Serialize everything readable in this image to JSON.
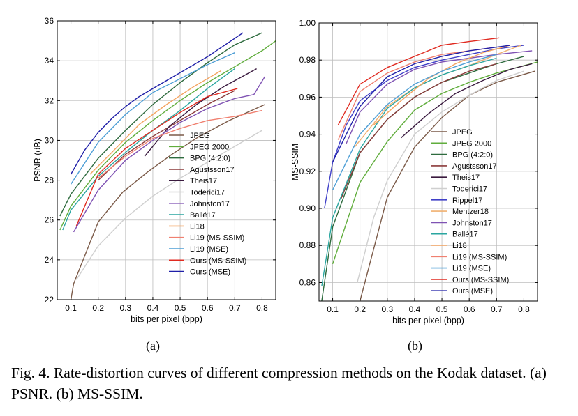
{
  "figure": {
    "caption": "Fig. 4.  Rate-distortion curves of different compression methods on the Kodak dataset. (a) PSNR. (b) MS-SSIM.",
    "sublabel_a": "(a)",
    "sublabel_b": "(b)"
  },
  "chart_data": [
    {
      "id": "psnr",
      "type": "line",
      "xlabel": "bits per pixel (bpp)",
      "ylabel": "PSNR (dB)",
      "xlim": [
        0.05,
        0.85
      ],
      "ylim": [
        22,
        36
      ],
      "xticks": [
        0.1,
        0.2,
        0.3,
        0.4,
        0.5,
        0.6,
        0.7,
        0.8
      ],
      "xticklabels": [
        "0.1",
        "0.2",
        "0.3",
        "0.4",
        "0.5",
        "0.6",
        "0.7",
        "0.8"
      ],
      "yticks": [
        22,
        24,
        26,
        28,
        30,
        32,
        34,
        36
      ],
      "yticklabels": [
        "22",
        "24",
        "26",
        "28",
        "30",
        "32",
        "34",
        "36"
      ],
      "grid": true,
      "legend": "bottom-right",
      "series": [
        {
          "name": "JPEG",
          "color": "#7b5a48",
          "x": [
            0.1,
            0.11,
            0.2,
            0.29,
            0.38,
            0.47,
            0.57,
            0.68,
            0.81
          ],
          "y": [
            22.0,
            22.8,
            25.9,
            27.4,
            28.4,
            29.3,
            30.2,
            31.0,
            31.8
          ]
        },
        {
          "name": "JPEG 2000",
          "color": "#60ad3c",
          "x": [
            0.06,
            0.1,
            0.2,
            0.3,
            0.4,
            0.5,
            0.6,
            0.7,
            0.8,
            0.85
          ],
          "y": [
            25.5,
            26.7,
            28.5,
            29.9,
            31.0,
            32.0,
            32.9,
            33.7,
            34.5,
            35.0
          ]
        },
        {
          "name": "BPG (4:2:0)",
          "color": "#2e6b3e",
          "x": [
            0.06,
            0.1,
            0.2,
            0.3,
            0.4,
            0.5,
            0.6,
            0.7,
            0.8
          ],
          "y": [
            26.2,
            27.3,
            29.1,
            30.5,
            31.8,
            32.9,
            33.9,
            34.8,
            35.4
          ]
        },
        {
          "name": "Agustsson17",
          "color": "#8b3a3a",
          "x": [
            0.2,
            0.3,
            0.4,
            0.5,
            0.6,
            0.7
          ],
          "y": [
            28.0,
            29.3,
            30.2,
            31.0,
            31.8,
            32.5
          ]
        },
        {
          "name": "Theis17",
          "color": "#3a1a3f",
          "x": [
            0.37,
            0.46,
            0.56,
            0.66,
            0.78
          ],
          "y": [
            29.2,
            30.7,
            31.8,
            32.7,
            33.6
          ]
        },
        {
          "name": "Toderici17",
          "color": "#cfcfcf",
          "x": [
            0.12,
            0.2,
            0.3,
            0.4,
            0.5,
            0.6,
            0.7,
            0.8
          ],
          "y": [
            23.0,
            24.7,
            26.1,
            27.2,
            28.1,
            28.9,
            29.7,
            30.5
          ]
        },
        {
          "name": "Johnston17",
          "color": "#7f52b3",
          "x": [
            0.11,
            0.2,
            0.3,
            0.4,
            0.5,
            0.6,
            0.7,
            0.77,
            0.81
          ],
          "y": [
            25.4,
            27.5,
            29.0,
            30.0,
            30.9,
            31.6,
            32.1,
            32.3,
            33.2
          ]
        },
        {
          "name": "Ballé17",
          "color": "#2aa6a0",
          "x": [
            0.07,
            0.1,
            0.2,
            0.3,
            0.4,
            0.5,
            0.6,
            0.7
          ],
          "y": [
            25.5,
            26.5,
            28.2,
            29.4,
            30.5,
            31.5,
            32.6,
            33.6
          ]
        },
        {
          "name": "Li18",
          "color": "#f4a460",
          "x": [
            0.17,
            0.25,
            0.35,
            0.45,
            0.55,
            0.65
          ],
          "y": [
            28.3,
            29.4,
            30.8,
            31.8,
            32.7,
            33.5
          ]
        },
        {
          "name": "Li19 (MS-SSIM)",
          "color": "#f08070",
          "x": [
            0.2,
            0.3,
            0.4,
            0.5,
            0.6,
            0.7,
            0.8
          ],
          "y": [
            28.1,
            29.2,
            30.1,
            30.6,
            31.0,
            31.2,
            31.5
          ]
        },
        {
          "name": "Li19 (MSE)",
          "color": "#4f9fd6",
          "x": [
            0.1,
            0.2,
            0.3,
            0.4,
            0.5,
            0.6,
            0.7
          ],
          "y": [
            27.8,
            29.9,
            31.3,
            32.4,
            33.1,
            33.8,
            34.4
          ]
        },
        {
          "name": "Ours (MS-SSIM)",
          "color": "#e02a20",
          "x": [
            0.12,
            0.2,
            0.3,
            0.4,
            0.5,
            0.6,
            0.71
          ],
          "y": [
            25.7,
            28.3,
            29.6,
            30.5,
            31.4,
            32.2,
            32.6
          ]
        },
        {
          "name": "Ours (MSE)",
          "color": "#1f1fa8",
          "x": [
            0.1,
            0.15,
            0.2,
            0.25,
            0.3,
            0.35,
            0.4,
            0.5,
            0.6,
            0.73
          ],
          "y": [
            28.3,
            29.5,
            30.4,
            31.1,
            31.7,
            32.2,
            32.6,
            33.4,
            34.2,
            35.4
          ]
        }
      ]
    },
    {
      "id": "msssim",
      "type": "line",
      "xlabel": "bits per pixel (bpp)",
      "ylabel": "MS-SSIM",
      "xlim": [
        0.05,
        0.85
      ],
      "ylim": [
        0.85,
        1.0
      ],
      "xticks": [
        0.1,
        0.2,
        0.3,
        0.4,
        0.5,
        0.6,
        0.7,
        0.8
      ],
      "xticklabels": [
        "0.1",
        "0.2",
        "0.3",
        "0.4",
        "0.5",
        "0.6",
        "0.7",
        "0.8"
      ],
      "yticks": [
        0.86,
        0.88,
        0.9,
        0.92,
        0.94,
        0.96,
        0.98,
        1.0
      ],
      "yticklabels": [
        "0.86",
        "0.88",
        "0.90",
        "0.92",
        "0.94",
        "0.96",
        "0.98",
        "1.00"
      ],
      "grid": true,
      "legend": "bottom-right",
      "series": [
        {
          "name": "JPEG",
          "color": "#7b5a48",
          "x": [
            0.2,
            0.3,
            0.4,
            0.5,
            0.6,
            0.7,
            0.84
          ],
          "y": [
            0.85,
            0.906,
            0.933,
            0.949,
            0.961,
            0.968,
            0.974
          ]
        },
        {
          "name": "JPEG 2000",
          "color": "#60ad3c",
          "x": [
            0.1,
            0.2,
            0.3,
            0.4,
            0.5,
            0.6,
            0.7,
            0.8,
            0.85
          ],
          "y": [
            0.87,
            0.914,
            0.936,
            0.953,
            0.962,
            0.968,
            0.973,
            0.977,
            0.979
          ]
        },
        {
          "name": "BPG (4:2:0)",
          "color": "#2e6b3e",
          "x": [
            0.06,
            0.1,
            0.2,
            0.3,
            0.4,
            0.5,
            0.6,
            0.7,
            0.8
          ],
          "y": [
            0.85,
            0.89,
            0.93,
            0.948,
            0.96,
            0.968,
            0.973,
            0.978,
            0.982
          ]
        },
        {
          "name": "Agustsson17",
          "color": "#8b3a3a",
          "x": [
            0.13,
            0.2,
            0.3,
            0.4,
            0.5,
            0.6,
            0.7
          ],
          "y": [
            0.905,
            0.93,
            0.948,
            0.96,
            0.968,
            0.974,
            0.978
          ]
        },
        {
          "name": "Theis17",
          "color": "#3a1a3f",
          "x": [
            0.35,
            0.45,
            0.55,
            0.65,
            0.75,
            0.83
          ],
          "y": [
            0.938,
            0.951,
            0.962,
            0.969,
            0.975,
            0.978
          ]
        },
        {
          "name": "Toderici17",
          "color": "#cfcfcf",
          "x": [
            0.19,
            0.25,
            0.3,
            0.4,
            0.5,
            0.6,
            0.7,
            0.8
          ],
          "y": [
            0.86,
            0.895,
            0.915,
            0.94,
            0.952,
            0.961,
            0.969,
            0.974
          ]
        },
        {
          "name": "Rippel17",
          "color": "#4040c8",
          "x": [
            0.07,
            0.1,
            0.15,
            0.2,
            0.3,
            0.4,
            0.5,
            0.6,
            0.7,
            0.8
          ],
          "y": [
            0.9,
            0.925,
            0.945,
            0.958,
            0.969,
            0.976,
            0.98,
            0.983,
            0.986,
            0.988
          ]
        },
        {
          "name": "Mentzer18",
          "color": "#f0b070",
          "x": [
            0.18,
            0.3,
            0.4,
            0.5,
            0.6,
            0.7,
            0.79
          ],
          "y": [
            0.933,
            0.955,
            0.965,
            0.972,
            0.977,
            0.983,
            0.988
          ]
        },
        {
          "name": "Johnston17",
          "color": "#7f52b3",
          "x": [
            0.15,
            0.2,
            0.3,
            0.4,
            0.5,
            0.6,
            0.7,
            0.83
          ],
          "y": [
            0.935,
            0.952,
            0.967,
            0.975,
            0.979,
            0.981,
            0.983,
            0.985
          ]
        },
        {
          "name": "Ballé17",
          "color": "#2aa6a0",
          "x": [
            0.06,
            0.1,
            0.2,
            0.3,
            0.4,
            0.5,
            0.6,
            0.7
          ],
          "y": [
            0.858,
            0.895,
            0.932,
            0.954,
            0.965,
            0.972,
            0.977,
            0.981
          ]
        },
        {
          "name": "Li18",
          "color": "#f4a460",
          "x": [
            0.25,
            0.35,
            0.45,
            0.55,
            0.65,
            0.75
          ],
          "y": [
            0.945,
            0.958,
            0.97,
            0.978,
            0.984,
            0.988
          ]
        },
        {
          "name": "Li19 (MS-SSIM)",
          "color": "#f08070",
          "x": [
            0.12,
            0.2,
            0.3,
            0.4,
            0.5,
            0.6,
            0.7
          ],
          "y": [
            0.937,
            0.963,
            0.973,
            0.979,
            0.983,
            0.985,
            0.987
          ]
        },
        {
          "name": "Li19 (MSE)",
          "color": "#4f9fd6",
          "x": [
            0.1,
            0.2,
            0.3,
            0.4,
            0.5,
            0.6,
            0.7
          ],
          "y": [
            0.91,
            0.94,
            0.956,
            0.967,
            0.974,
            0.979,
            0.983
          ]
        },
        {
          "name": "Ours (MS-SSIM)",
          "color": "#e02a20",
          "x": [
            0.12,
            0.2,
            0.3,
            0.4,
            0.5,
            0.6,
            0.71
          ],
          "y": [
            0.945,
            0.967,
            0.976,
            0.982,
            0.988,
            0.99,
            0.992
          ]
        },
        {
          "name": "Ours (MSE)",
          "color": "#1f1fa8",
          "x": [
            0.1,
            0.2,
            0.3,
            0.4,
            0.5,
            0.6,
            0.75
          ],
          "y": [
            0.925,
            0.955,
            0.971,
            0.978,
            0.982,
            0.985,
            0.988
          ]
        }
      ]
    }
  ]
}
